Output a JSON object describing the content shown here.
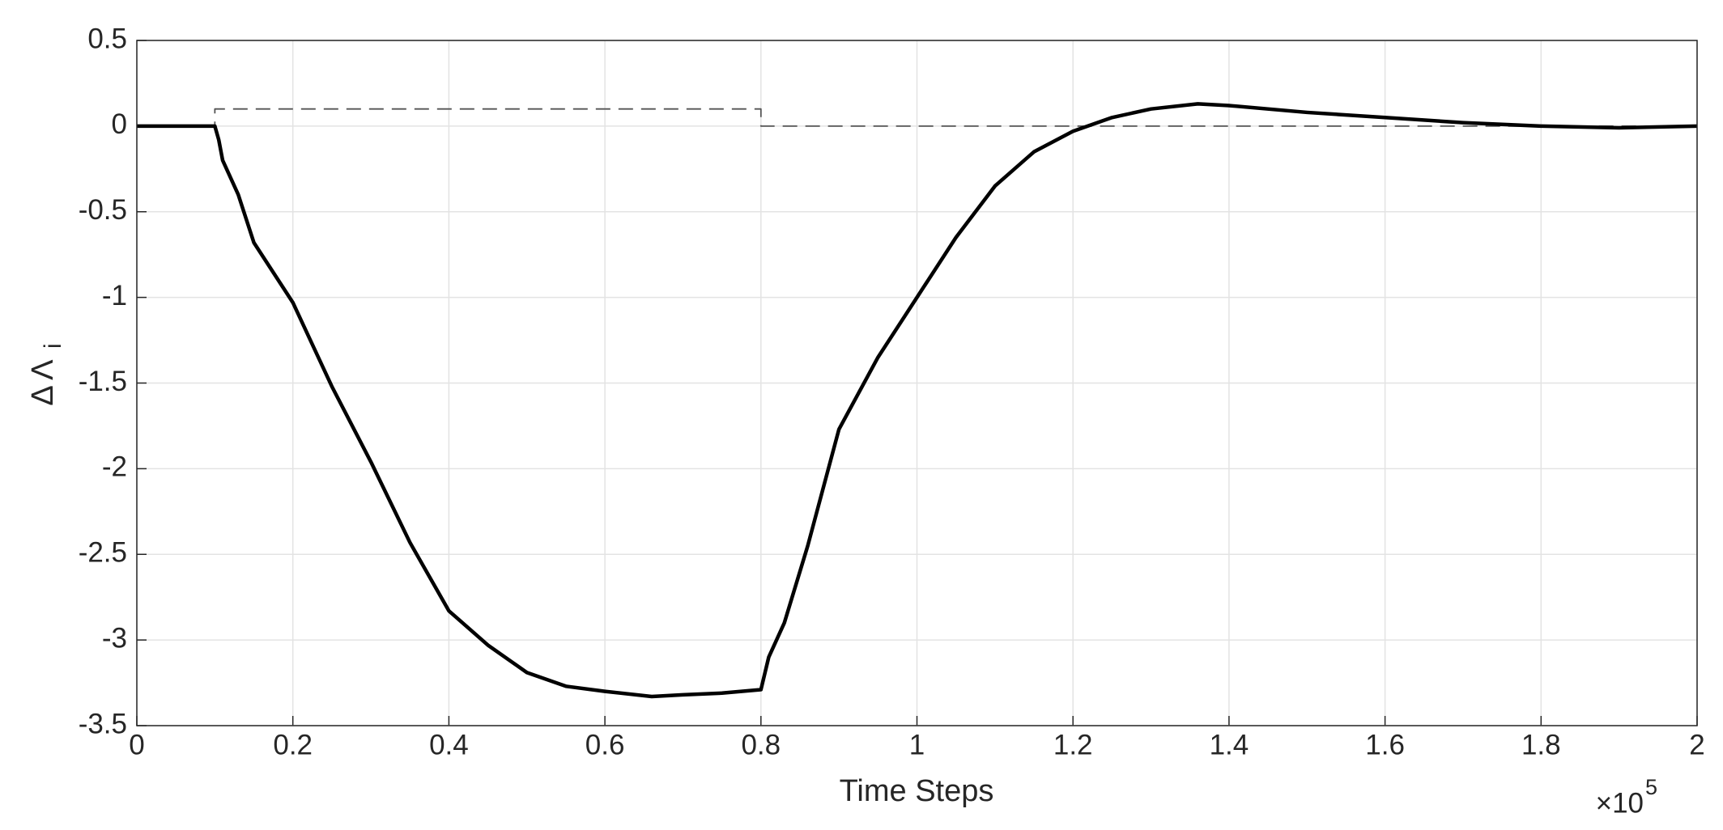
{
  "chart_data": {
    "type": "line",
    "xlabel": "Time Steps",
    "ylabel": "Δ Λ",
    "ylabel_subscript": "i",
    "x_multiplier": "×10",
    "x_multiplier_exponent": "5",
    "xlim": [
      0,
      2
    ],
    "xticks": [
      0,
      0.2,
      0.4,
      0.6,
      0.8,
      1,
      1.2,
      1.4,
      1.6,
      1.8,
      2
    ],
    "ylim": [
      -3.5,
      0.5
    ],
    "yticks": [
      -3.5,
      -3,
      -2.5,
      -2,
      -1.5,
      -1,
      -0.5,
      0,
      0.5
    ],
    "grid": true,
    "series": [
      {
        "color": "#000000",
        "dash": false,
        "x": [
          0,
          0.1,
          0.105,
          0.11,
          0.13,
          0.15,
          0.2,
          0.25,
          0.3,
          0.35,
          0.4,
          0.45,
          0.5,
          0.55,
          0.6,
          0.66,
          0.7,
          0.75,
          0.8,
          0.81,
          0.83,
          0.86,
          0.9,
          0.95,
          1.0,
          1.05,
          1.1,
          1.15,
          1.2,
          1.25,
          1.3,
          1.36,
          1.4,
          1.5,
          1.6,
          1.7,
          1.8,
          1.9,
          2.0
        ],
        "values": [
          0,
          0,
          -0.08,
          -0.2,
          -0.4,
          -0.68,
          -1.03,
          -1.52,
          -1.96,
          -2.43,
          -2.83,
          -3.03,
          -3.19,
          -3.27,
          -3.3,
          -3.33,
          -3.32,
          -3.31,
          -3.29,
          -3.1,
          -2.9,
          -2.45,
          -1.77,
          -1.35,
          -1.0,
          -0.65,
          -0.35,
          -0.15,
          -0.03,
          0.05,
          0.1,
          0.13,
          0.12,
          0.08,
          0.05,
          0.02,
          0.0,
          -0.01,
          0
        ]
      },
      {
        "color": "#555555",
        "dash": true,
        "x": [
          0,
          0.1,
          0.1,
          0.8,
          0.8,
          2.0
        ],
        "values": [
          0,
          0,
          0.1,
          0.1,
          0,
          0
        ]
      }
    ]
  }
}
